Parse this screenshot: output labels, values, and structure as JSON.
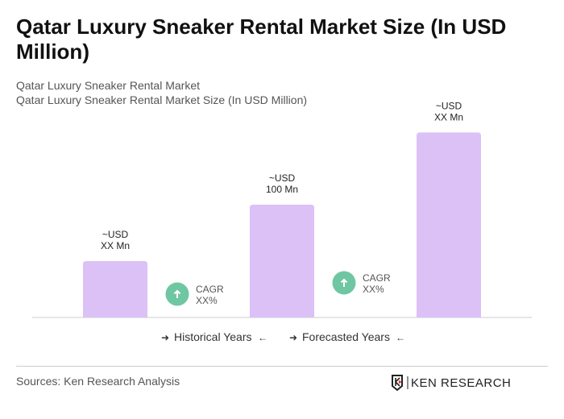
{
  "title": "Qatar Luxury Sneaker Rental Market Size (In USD Million)",
  "subtitle1": "Qatar Luxury Sneaker Rental Market",
  "subtitle2": "Qatar Luxury Sneaker Rental Market Size (In USD Million)",
  "sources": "Sources: Ken Research Analysis",
  "logo_text": "KEN RESEARCH",
  "colors": {
    "bar": "#dcc1f7",
    "cagr": "#6fc6a2",
    "axis": "#cccccc"
  },
  "chart_data": {
    "type": "bar",
    "categories": [
      "",
      "",
      ""
    ],
    "values": [
      50,
      100,
      164
    ],
    "data_labels": [
      [
        "~USD",
        "XX Mn"
      ],
      [
        "~USD",
        "100 Mn"
      ],
      [
        "~USD",
        "XX Mn"
      ]
    ],
    "cagr": [
      {
        "label": "CAGR",
        "value": "XX%",
        "icon": "arrow-up-icon"
      },
      {
        "label": "CAGR",
        "value": "XX%",
        "icon": "arrow-up-icon"
      }
    ],
    "legend": [
      "Historical Years",
      "Forecasted Years"
    ],
    "grid": false
  }
}
